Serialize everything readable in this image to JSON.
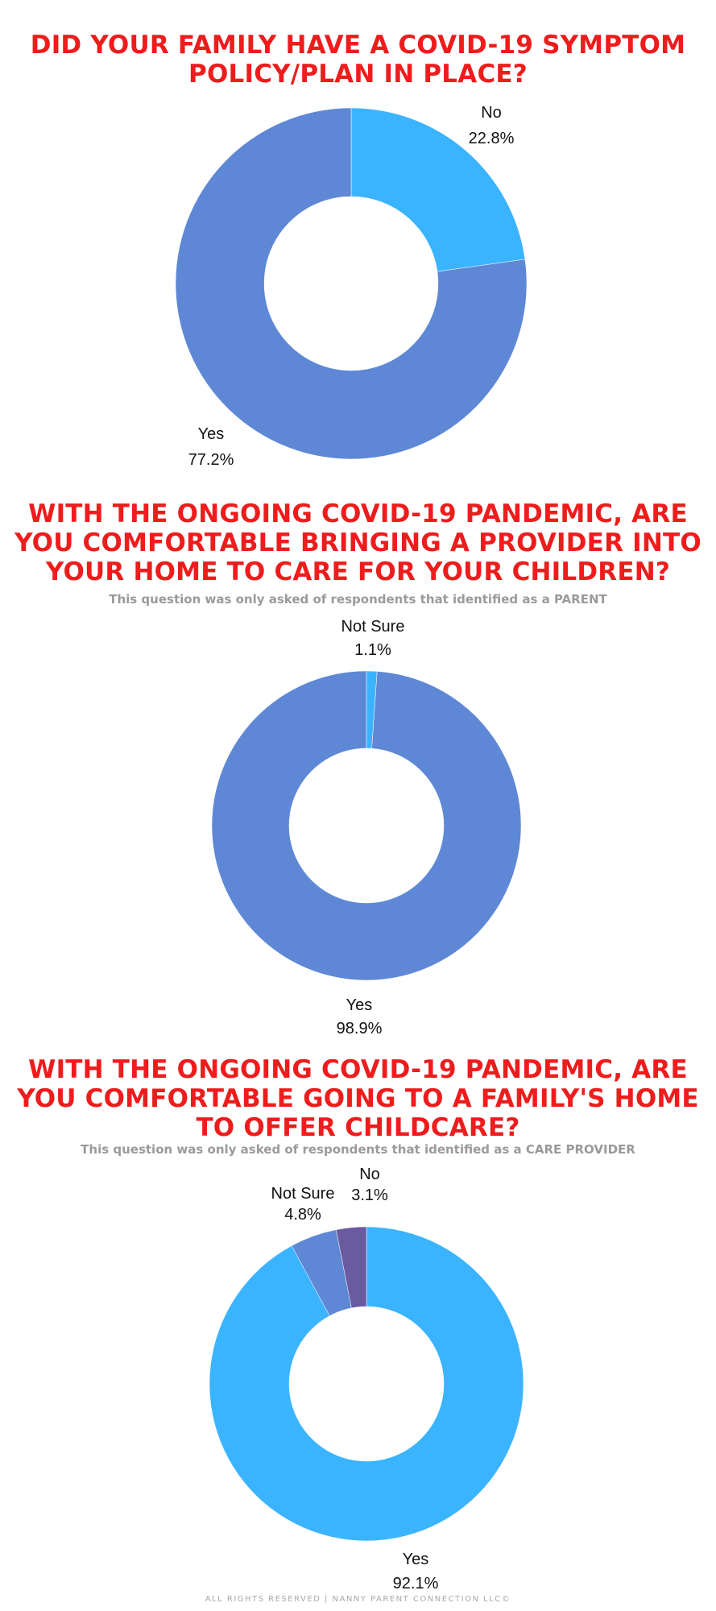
{
  "chart_data": [
    {
      "type": "pie",
      "title": "DID YOUR FAMILY HAVE A COVID-19 SYMPTOM POLICY/PLAN IN PLACE?",
      "note": "",
      "slices": [
        {
          "label": "No",
          "value": 22.8,
          "display": "22.8%",
          "color": "#3bb4ff"
        },
        {
          "label": "Yes",
          "value": 77.2,
          "display": "77.2%",
          "color": "#5e88d6"
        }
      ]
    },
    {
      "type": "pie",
      "title": "WITH THE ONGOING COVID-19 PANDEMIC, ARE YOU COMFORTABLE BRINGING A PROVIDER INTO YOUR HOME TO CARE FOR YOUR CHILDREN?",
      "note": "This question was only asked of respondents that identified as a PARENT",
      "slices": [
        {
          "label": "Not Sure",
          "value": 1.1,
          "display": "1.1%",
          "color": "#3bb4ff"
        },
        {
          "label": "Yes",
          "value": 98.9,
          "display": "98.9%",
          "color": "#5e88d6"
        }
      ]
    },
    {
      "type": "pie",
      "title": "WITH THE ONGOING COVID-19 PANDEMIC, ARE YOU COMFORTABLE GOING TO A FAMILY'S HOME TO OFFER CHILDCARE?",
      "note": "This question was only asked of respondents that identified as a CARE PROVIDER",
      "slices": [
        {
          "label": "Yes",
          "value": 92.1,
          "display": "92.1%",
          "color": "#3bb4ff"
        },
        {
          "label": "Not Sure",
          "value": 4.8,
          "display": "4.8%",
          "color": "#5e88d6"
        },
        {
          "label": "No",
          "value": 3.1,
          "display": "3.1%",
          "color": "#6a5aa0"
        }
      ]
    }
  ],
  "footer": "ALL RIGHTS RESERVED | NANNY PARENT CONNECTION LLC©"
}
